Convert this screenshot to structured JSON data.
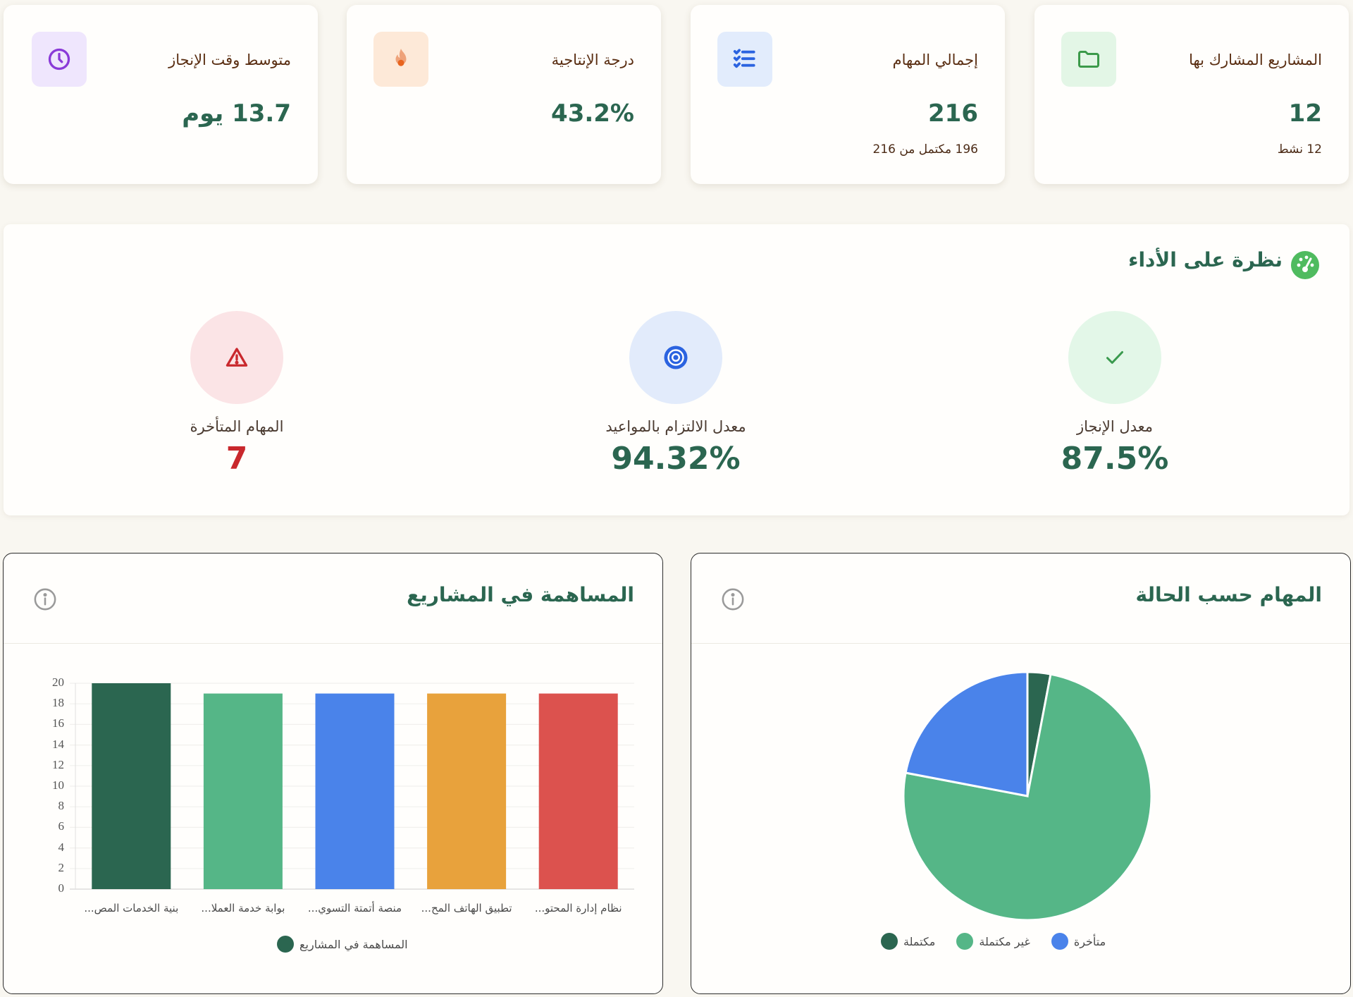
{
  "stats": [
    {
      "title": "المشاريع المشارك بها",
      "value": "12",
      "sub": "12 نشط",
      "icon": "folder-icon",
      "icon_bg": "#e3f6e6",
      "icon_color": "#3b9a4a"
    },
    {
      "title": "إجمالي المهام",
      "value": "216",
      "sub": "196 مكتمل من 216",
      "icon": "task-list-icon",
      "icon_bg": "#e2ecfc",
      "icon_color": "#2b63e0"
    },
    {
      "title": "درجة الإنتاجية",
      "value": "43.2%",
      "sub": "",
      "icon": "fire-icon",
      "icon_bg": "#fde9d8",
      "icon_color": "#e8641e"
    },
    {
      "title": "متوسط وقت الإنجاز",
      "value": "13.7 يوم",
      "sub": "",
      "icon": "clock-icon",
      "icon_bg": "#efe6fd",
      "icon_color": "#8a3ad8"
    }
  ],
  "performance": {
    "title": "نظرة على الأداء",
    "icon": "gauge-icon",
    "metrics": [
      {
        "label": "معدل الإنجاز",
        "value": "87.5%",
        "icon": "check-icon",
        "bg": "#e3f7e8",
        "color": "#3a9a4e",
        "value_color": "#2b6650"
      },
      {
        "label": "معدل الالتزام بالمواعيد",
        "value": "94.32%",
        "icon": "target-icon",
        "bg": "#e2ebfb",
        "color": "#2b63e0",
        "value_color": "#2b6650"
      },
      {
        "label": "المهام المتأخرة",
        "value": "7",
        "icon": "warning-icon",
        "bg": "#fbe4e6",
        "color": "#c9282d",
        "value_color": "#c9282d"
      }
    ]
  },
  "status_chart": {
    "title": "المهام حسب الحالة",
    "info_icon": "info-icon"
  },
  "contribution_chart": {
    "title": "المساهمة في المشاريع",
    "info_icon": "info-icon"
  },
  "chart_data": [
    {
      "type": "bar",
      "title": "المساهمة في المشاريع",
      "categories": [
        "نظام إدارة المحتو...",
        "تطبيق الهاتف المح...",
        "منصة أتمتة التسوي...",
        "بوابة خدمة العملا...",
        "بنية الخدمات المص..."
      ],
      "series": [
        {
          "name": "المساهمة في المشاريع",
          "values": [
            19,
            19,
            19,
            19,
            20
          ]
        }
      ],
      "colors": [
        "#dc524e",
        "#e8a23c",
        "#4a83ea",
        "#55b687",
        "#2b6650"
      ],
      "yticks": [
        0,
        2,
        4,
        6,
        8,
        10,
        12,
        14,
        16,
        18,
        20
      ],
      "ylim": [
        0,
        20
      ],
      "xlabel": "",
      "ylabel": "",
      "grid": true,
      "legend": [
        "المساهمة في المشاريع"
      ],
      "legend_position": "bottom"
    },
    {
      "type": "pie",
      "title": "المهام حسب الحالة",
      "categories": [
        "مكتملة",
        "غير مكتملة",
        "متأخرة"
      ],
      "values": [
        3,
        75,
        22
      ],
      "colors": [
        "#2b6650",
        "#55b687",
        "#4a83ea"
      ],
      "legend": [
        "مكتملة",
        "غير مكتملة",
        "متأخرة"
      ],
      "legend_position": "bottom"
    }
  ]
}
